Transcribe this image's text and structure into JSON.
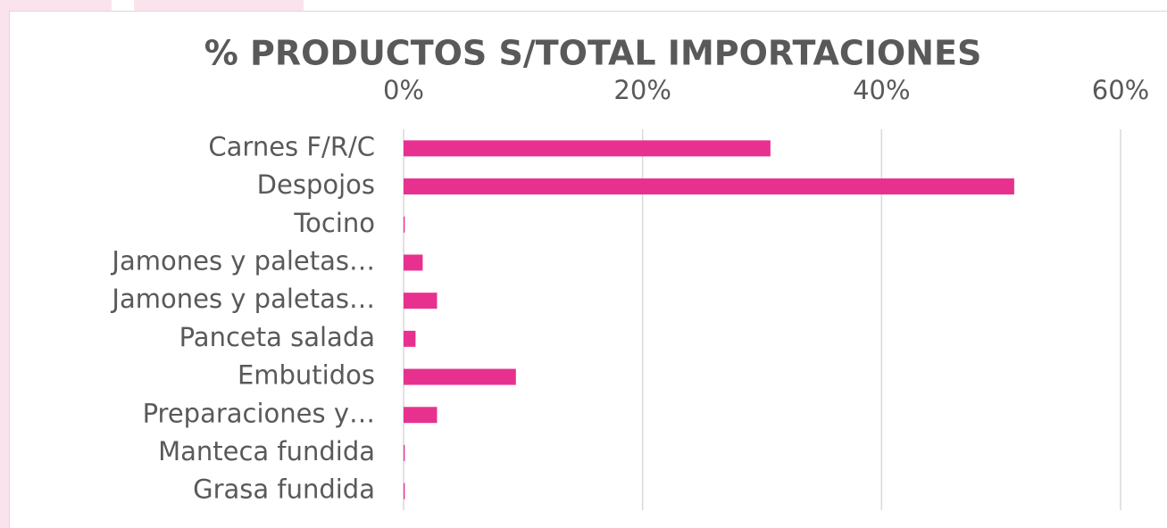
{
  "chart_data": {
    "type": "barh",
    "title": "% PRODUCTOS  S/TOTAL IMPORTACIONES",
    "categories": [
      "Carnes F/R/C",
      "Despojos",
      "Tocino",
      "Jamones y paletas…",
      "Jamones y paletas…",
      "Panceta salada",
      "Embutidos",
      "Preparaciones y…",
      "Manteca fundida",
      "Grasa fundida"
    ],
    "values": [
      30.7,
      51.1,
      0.1,
      1.6,
      2.8,
      1.0,
      9.4,
      2.8,
      0.1,
      0.1
    ],
    "color": "#e8318f",
    "xlim": [
      0,
      60
    ],
    "xticks": [
      {
        "value": 0,
        "label": "0%"
      },
      {
        "value": 20,
        "label": "20%"
      },
      {
        "value": 40,
        "label": "40%"
      },
      {
        "value": 60,
        "label": "60%"
      }
    ],
    "grid": true
  }
}
